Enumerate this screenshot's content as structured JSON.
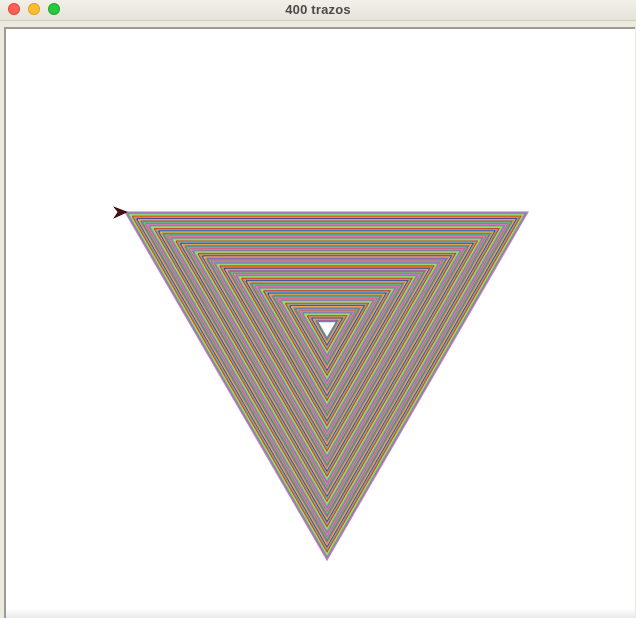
{
  "window": {
    "title": "400 trazos"
  },
  "drawing": {
    "stroke_count": 400,
    "shape": "nested inverted triangles",
    "turtle_cursor": "arrow-cursor-icon",
    "palette": [
      "#e377c2",
      "#6fbf73",
      "#9b59b6",
      "#f0a35e",
      "#5dade2",
      "#c0392b",
      "#7fdb6a",
      "#8e7cc3",
      "#d35d6e",
      "#4a9a8f",
      "#b8a93a",
      "#3b3b98",
      "#e67e22",
      "#a3d977",
      "#7f8c8d"
    ]
  }
}
